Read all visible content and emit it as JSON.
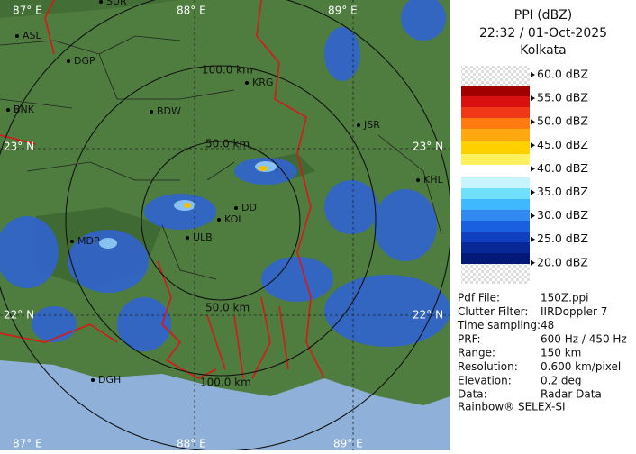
{
  "header": {
    "title": "PPI (dBZ)",
    "time": "22:32 / 01-Oct-2025",
    "site": "Kolkata"
  },
  "legend": {
    "labels": [
      "60.0 dBZ",
      "55.0 dBZ",
      "50.0 dBZ",
      "45.0 dBZ",
      "40.0 dBZ",
      "35.0 dBZ",
      "30.0 dBZ",
      "25.0 dBZ",
      "20.0 dBZ"
    ]
  },
  "info": {
    "rows": [
      [
        "Pdf File:",
        "150Z.ppi"
      ],
      [
        "Clutter Filter:",
        "IIRDoppler 7"
      ],
      [
        "Time sampling:",
        "48"
      ],
      [
        "PRF:",
        "600 Hz / 450 Hz"
      ],
      [
        "Range:",
        "150 km"
      ],
      [
        "Resolution:",
        "0.600 km/pixel"
      ],
      [
        "Elevation:",
        "0.2 deg"
      ],
      [
        "Data:",
        "Radar Data"
      ]
    ],
    "footer": "Rainbow® SELEX-SI"
  },
  "map": {
    "places": [
      "SUR",
      "ASL",
      "DGP",
      "BNK",
      "BDW",
      "KRG",
      "JSR",
      "KHL",
      "MDP",
      "ULB",
      "KOL",
      "DD",
      "DGH"
    ],
    "grid_labels": [
      "87° E",
      "88° E",
      "89° E",
      "87° E",
      "88° E",
      "89° E",
      "23° N",
      "23° N",
      "22° N",
      "22° N"
    ],
    "ring_labels": [
      "100.0 km",
      "50.0 km",
      "50.0 km",
      "100.0 km"
    ]
  }
}
